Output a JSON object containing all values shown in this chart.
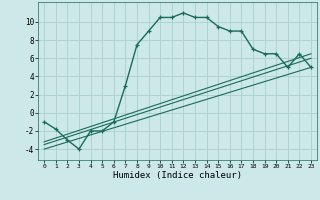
{
  "xlabel": "Humidex (Indice chaleur)",
  "bg_color": "#cce8e8",
  "line_color": "#1a6b5a",
  "grid_color": "#aad0d0",
  "xlim": [
    -0.5,
    23.5
  ],
  "ylim": [
    -5.2,
    12.2
  ],
  "xticks": [
    0,
    1,
    2,
    3,
    4,
    5,
    6,
    7,
    8,
    9,
    10,
    11,
    12,
    13,
    14,
    15,
    16,
    17,
    18,
    19,
    20,
    21,
    22,
    23
  ],
  "yticks": [
    -4,
    -2,
    0,
    2,
    4,
    6,
    8,
    10
  ],
  "curve1_x": [
    0,
    1,
    2,
    3,
    4,
    5,
    6,
    7,
    8,
    9,
    10,
    11,
    12,
    13,
    14,
    15,
    16,
    17,
    18,
    19,
    20,
    21,
    22,
    23
  ],
  "curve1_y": [
    -1,
    -1.8,
    -3,
    -4,
    -2,
    -2,
    -1,
    3,
    7.5,
    9,
    10.5,
    10.5,
    11,
    10.5,
    10.5,
    9.5,
    9,
    9,
    7,
    6.5,
    6.5,
    5,
    6.5,
    5
  ],
  "line1_x": [
    0,
    23
  ],
  "line1_y": [
    -4,
    5
  ],
  "line2_x": [
    0,
    23
  ],
  "line2_y": [
    -3.5,
    6
  ],
  "line3_x": [
    0,
    23
  ],
  "line3_y": [
    -3.2,
    6.5
  ]
}
